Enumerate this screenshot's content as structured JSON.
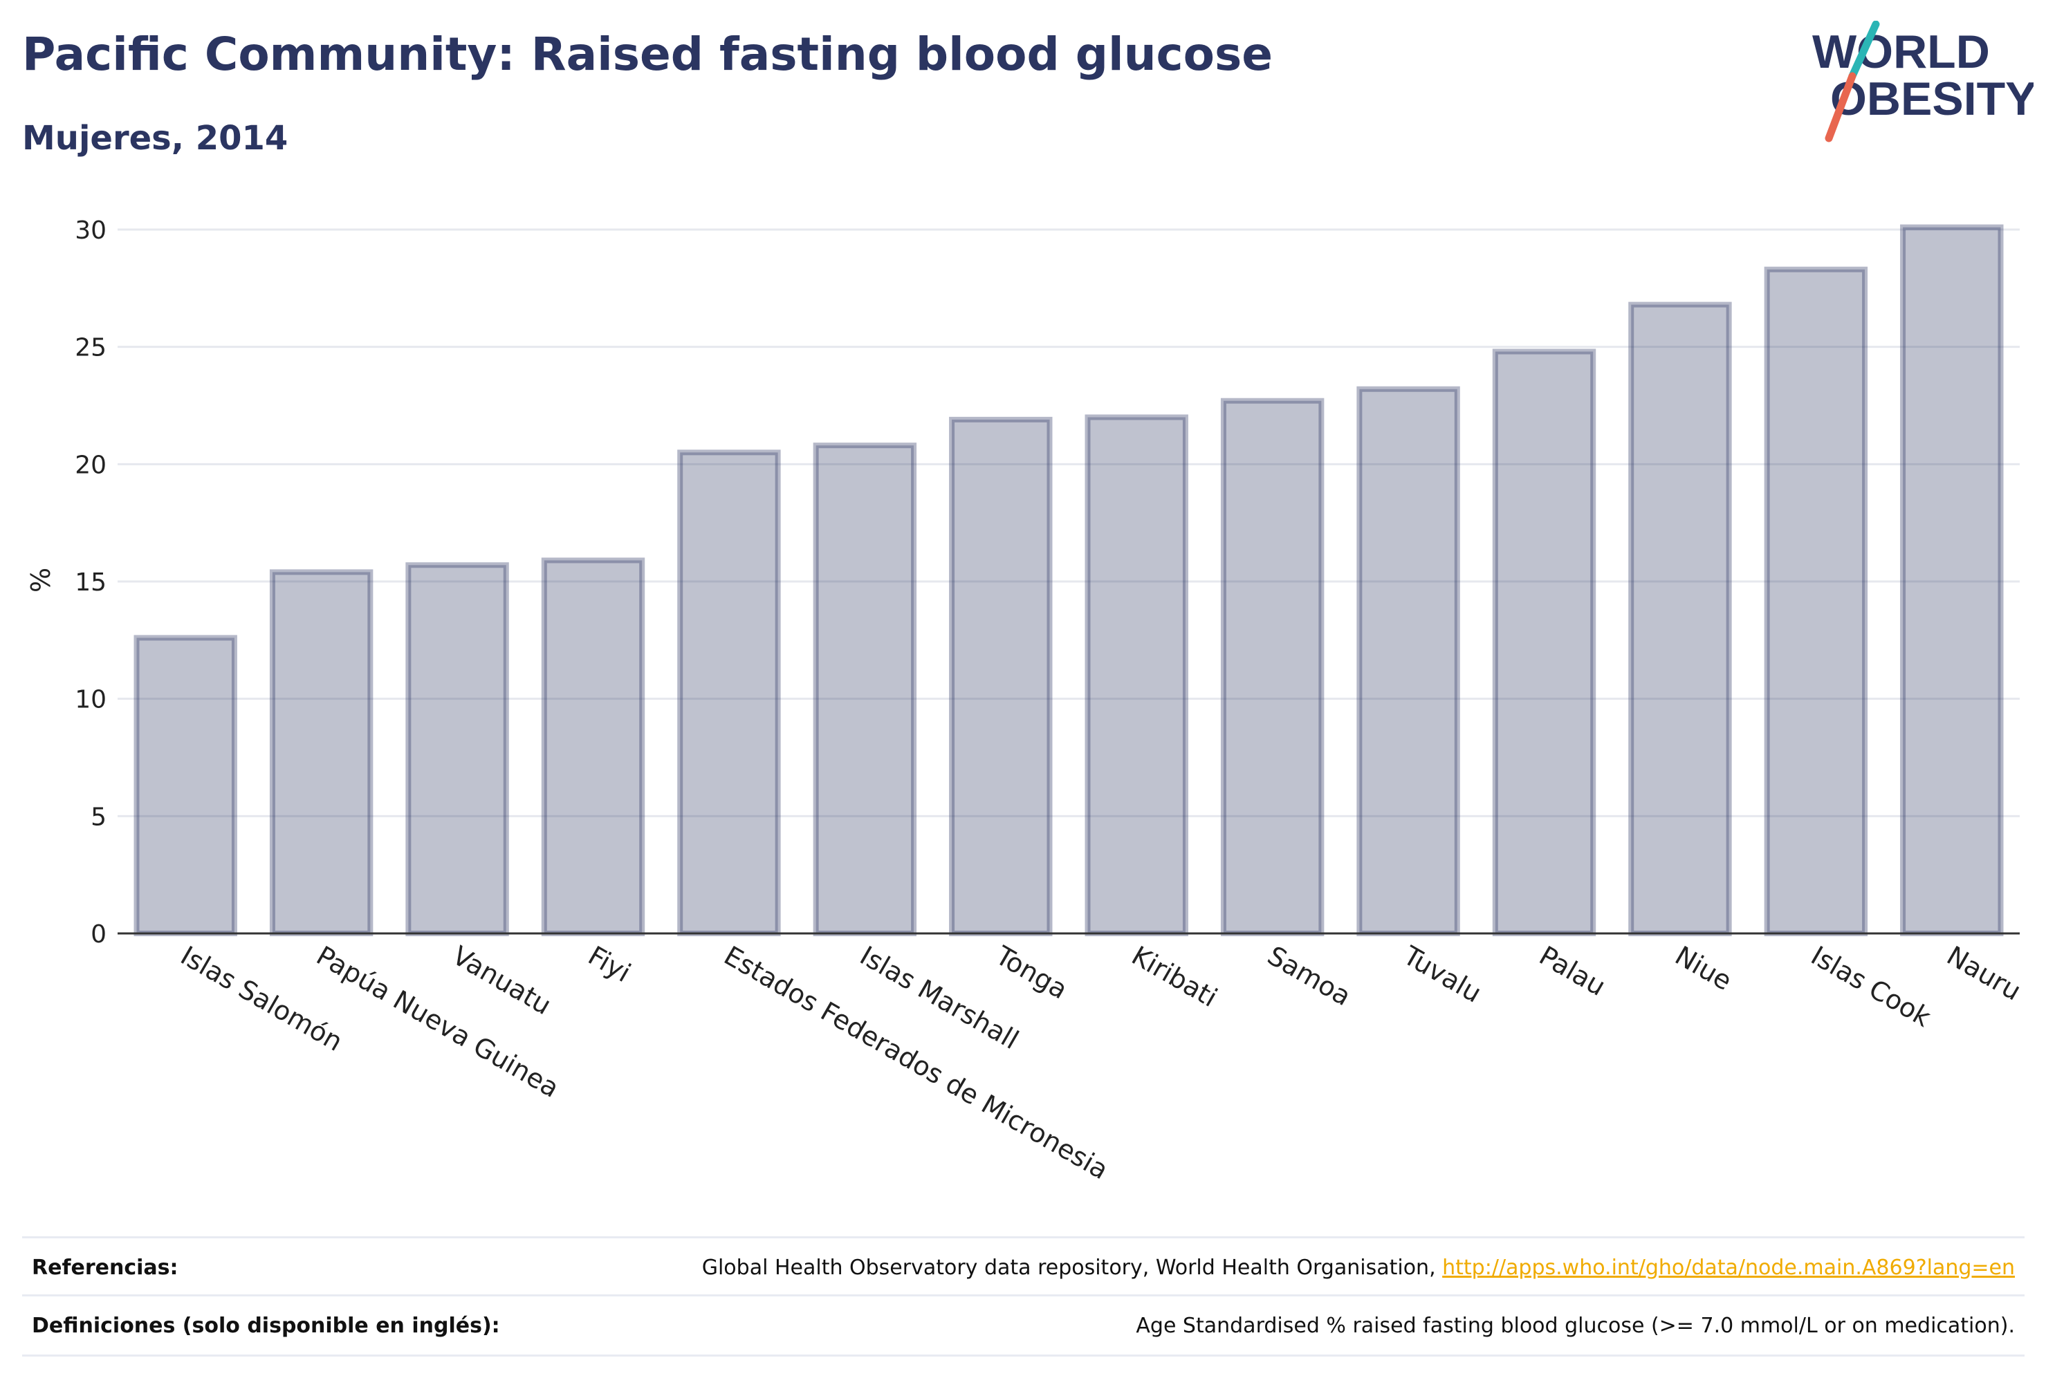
{
  "header": {
    "title": "Pacific Community: Raised fasting blood glucose",
    "subtitle": "Mujeres, 2014"
  },
  "logo": {
    "line1": "WORLD",
    "line2": "OBESITY",
    "colors": {
      "text": "#2b3561",
      "slash_top": "#2bb5b5",
      "slash_bottom": "#e8664f"
    }
  },
  "chart_data": {
    "type": "bar",
    "title": "Pacific Community: Raised fasting blood glucose",
    "subtitle": "Mujeres, 2014",
    "xlabel": "",
    "ylabel": "%",
    "ylim": [
      0,
      31
    ],
    "yticks": [
      0,
      5,
      10,
      15,
      20,
      25,
      30
    ],
    "grid": true,
    "bar_color": "#2b3561",
    "categories": [
      "Islas Salomón",
      "Papúa Nueva Guinea",
      "Vanuatu",
      "Fiyi",
      "Estados Federados de Micronesia",
      "Islas Marshall",
      "Tonga",
      "Kiribati",
      "Samoa",
      "Tuvalu",
      "Palau",
      "Niue",
      "Islas Cook",
      "Nauru"
    ],
    "values": [
      12.6,
      15.4,
      15.7,
      15.9,
      20.5,
      20.8,
      21.9,
      22.0,
      22.7,
      23.2,
      24.8,
      26.8,
      28.3,
      30.1
    ]
  },
  "footer": {
    "references_label": "Referencias:",
    "references_text": "Global Health Observatory data repository, World Health Organisation, ",
    "references_link": "http://apps.who.int/gho/data/node.main.A869?lang=en",
    "definitions_label": "Definiciones (solo disponible en inglés):",
    "definitions_text": "Age Standardised % raised fasting blood glucose (>= 7.0 mmol/L or on medication)."
  }
}
